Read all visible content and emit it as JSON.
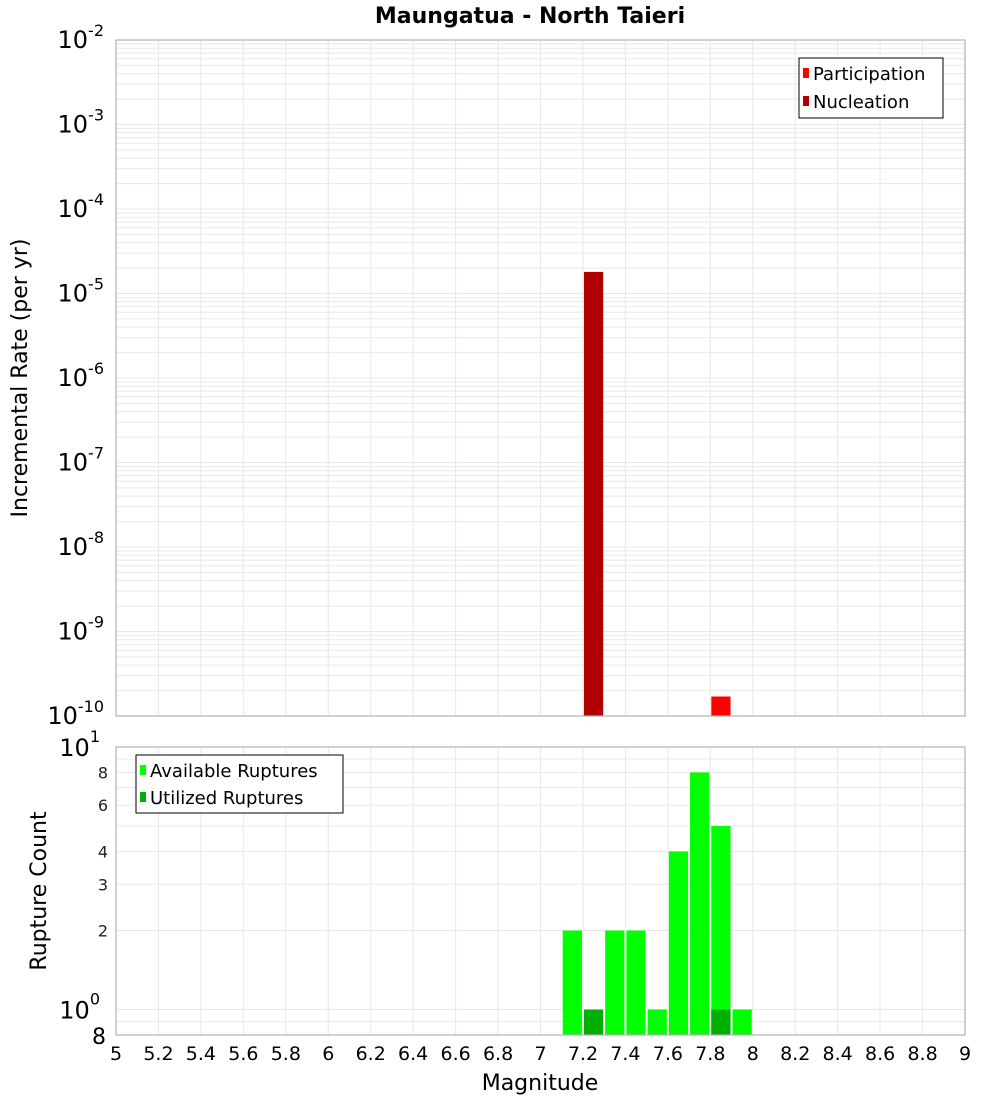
{
  "title": "Maungatua - North Taieri",
  "colors": {
    "participation": "#ff0000",
    "nucleation": "#b00000",
    "available": "#00ff00",
    "utilized": "#00b000",
    "grid": "#e8e8e8",
    "frame": "#b0b0b0"
  },
  "chart_data": [
    {
      "type": "bar",
      "title": "Maungatua - North Taieri",
      "xlabel": "Magnitude",
      "ylabel": "Incremental Rate (per yr)",
      "yscale": "log",
      "ylim": [
        1e-10,
        0.01
      ],
      "xlim": [
        5,
        9
      ],
      "bin_width": 0.1,
      "grid": true,
      "legend_position": "top-right",
      "y_tick_labels": [
        "10^-2",
        "10^-3",
        "10^-4",
        "10^-5",
        "10^-6",
        "10^-7",
        "10^-8",
        "10^-9",
        "10^-10"
      ],
      "series": [
        {
          "name": "Participation",
          "color": "#ff0000",
          "x": [
            7.85
          ],
          "values": [
            1.7e-10
          ]
        },
        {
          "name": "Nucleation",
          "color": "#b00000",
          "x": [
            7.25
          ],
          "values": [
            1.8e-05
          ]
        }
      ]
    },
    {
      "type": "bar",
      "xlabel": "Magnitude",
      "ylabel": "Rupture Count",
      "yscale": "log",
      "ylim": [
        0.8,
        10
      ],
      "xlim": [
        5,
        9
      ],
      "bin_width": 0.1,
      "grid": true,
      "legend_position": "top-left",
      "x_tick_labels": [
        "5",
        "5.2",
        "5.4",
        "5.6",
        "5.8",
        "6",
        "6.2",
        "6.4",
        "6.6",
        "6.8",
        "7",
        "7.2",
        "7.4",
        "7.6",
        "7.8",
        "8",
        "8.2",
        "8.4",
        "8.6",
        "8.8",
        "9"
      ],
      "y_tick_labels": [
        "10^1",
        "8",
        "6",
        "4",
        "3",
        "2",
        "10^0",
        "8"
      ],
      "series": [
        {
          "name": "Available Ruptures",
          "color": "#00ff00",
          "x": [
            7.15,
            7.35,
            7.45,
            7.55,
            7.65,
            7.75,
            7.85,
            7.95
          ],
          "values": [
            2,
            2,
            2,
            1,
            4,
            8,
            5,
            1
          ]
        },
        {
          "name": "Utilized Ruptures",
          "color": "#00b000",
          "x": [
            7.25,
            7.85
          ],
          "values": [
            1,
            1
          ]
        }
      ]
    }
  ],
  "top_plot": {
    "ylabel": "Incremental Rate (per yr)",
    "legend": [
      {
        "label": "Participation",
        "color": "#ff0000"
      },
      {
        "label": "Nucleation",
        "color": "#b00000"
      }
    ],
    "ticks": [
      {
        "base": "10",
        "exp": "-2",
        "v": -2
      },
      {
        "base": "10",
        "exp": "-3",
        "v": -3
      },
      {
        "base": "10",
        "exp": "-4",
        "v": -4
      },
      {
        "base": "10",
        "exp": "-5",
        "v": -5
      },
      {
        "base": "10",
        "exp": "-6",
        "v": -6
      },
      {
        "base": "10",
        "exp": "-7",
        "v": -7
      },
      {
        "base": "10",
        "exp": "-8",
        "v": -8
      },
      {
        "base": "10",
        "exp": "-9",
        "v": -9
      },
      {
        "base": "10",
        "exp": "-10",
        "v": -10
      }
    ]
  },
  "bottom_plot": {
    "ylabel": "Rupture Count",
    "xlabel": "Magnitude",
    "legend": [
      {
        "label": "Available Ruptures",
        "color": "#00ff00"
      },
      {
        "label": "Utilized Ruptures",
        "color": "#00b000"
      }
    ],
    "major_ticks": [
      {
        "base": "10",
        "exp": "1",
        "v": 10
      },
      {
        "base": "10",
        "exp": "0",
        "v": 1
      }
    ],
    "minor_ticks": [
      {
        "label": "8",
        "v": 8
      },
      {
        "label": "6",
        "v": 6
      },
      {
        "label": "4",
        "v": 4
      },
      {
        "label": "3",
        "v": 3
      },
      {
        "label": "2",
        "v": 2
      }
    ],
    "bottom_label": {
      "label": "8",
      "v": 0.8
    }
  }
}
